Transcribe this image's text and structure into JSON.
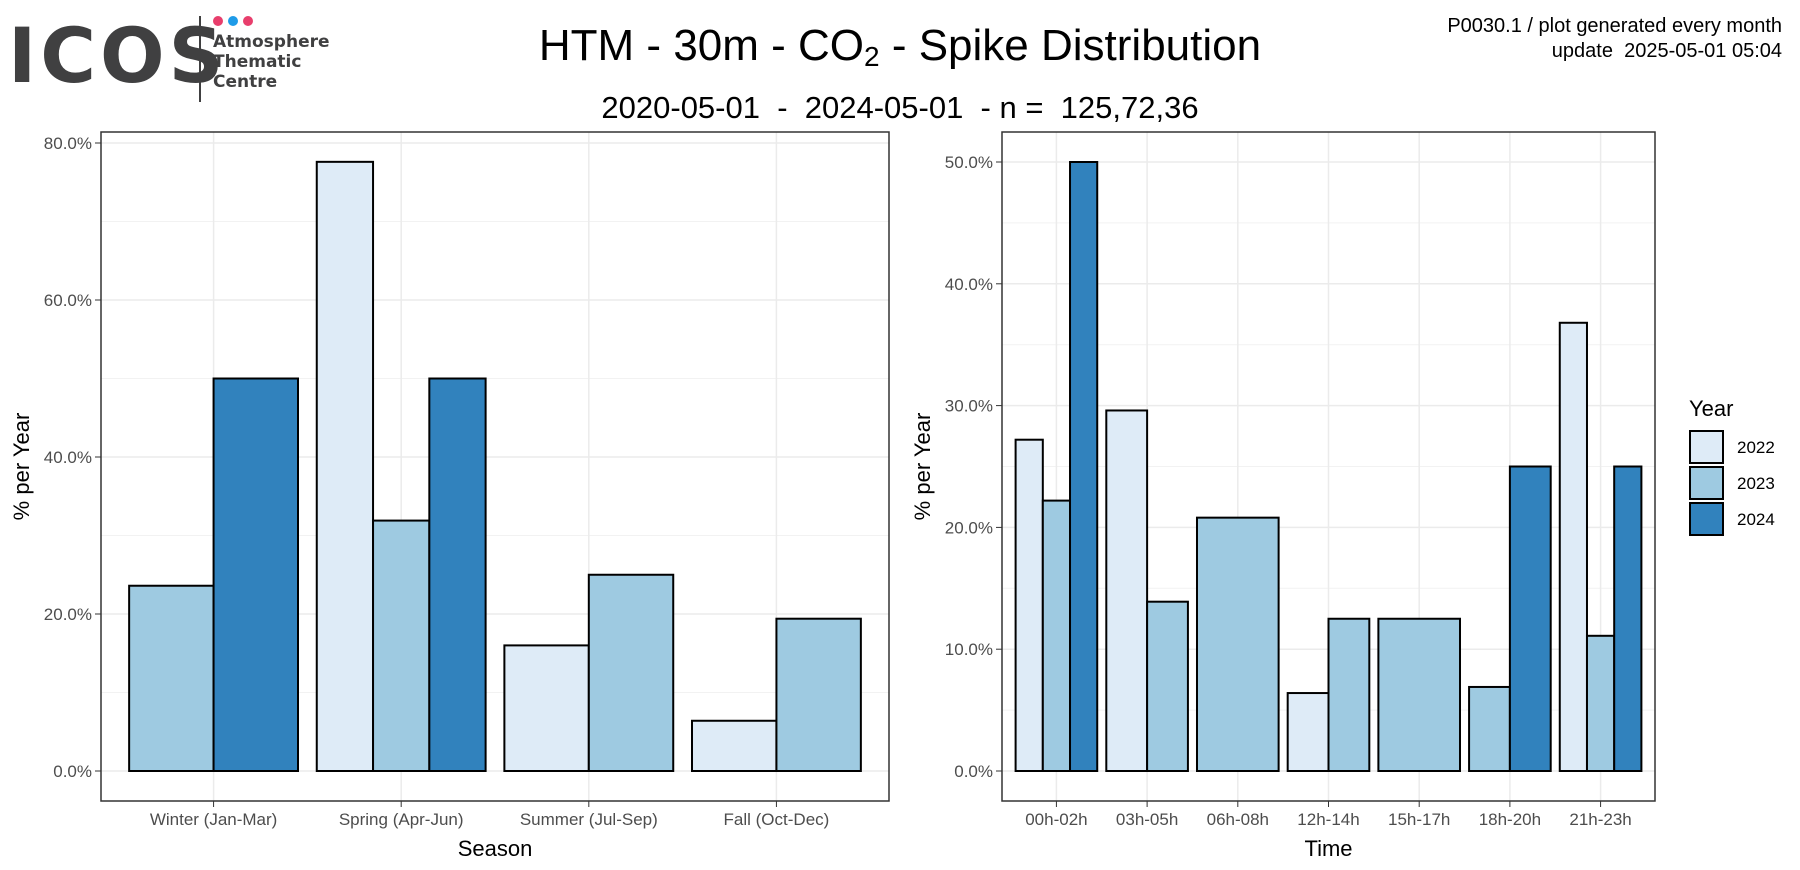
{
  "logo": {
    "word": "ICOS",
    "lines": [
      "Atmosphere",
      "Thematic",
      "Centre"
    ],
    "dot_colors": [
      "#e83e6c",
      "#1e9be8",
      "#e83e6c"
    ]
  },
  "header": {
    "title_pre": "HTM - 30m - CO",
    "title_sub": "2",
    "title_post": " - Spike Distribution",
    "subtitle": "2020-05-01  -  2024-05-01  - n =  125,72,36",
    "meta_line1": "P0030.1 / plot generated every month",
    "meta_line2": "update  2025-05-01 05:04"
  },
  "colors": {
    "2022": "#deebf7",
    "2023": "#9ecae1",
    "2024": "#3182bd"
  },
  "legend": {
    "title": "Year",
    "items": [
      "2022",
      "2023",
      "2024"
    ]
  },
  "chart_data": [
    {
      "type": "bar",
      "xlabel": "Season",
      "ylabel": "% per Year",
      "ylim": [
        0,
        80
      ],
      "yticks": [
        "0.0%",
        "20.0%",
        "40.0%",
        "60.0%",
        "80.0%"
      ],
      "categories": [
        "Winter (Jan-Mar)",
        "Spring (Apr-Jun)",
        "Summer (Jul-Sep)",
        "Fall (Oct-Dec)"
      ],
      "groups": [
        {
          "category": "Winter (Jan-Mar)",
          "bars": [
            {
              "year": "2023",
              "value": 23.6
            },
            {
              "year": "2024",
              "value": 50.0
            }
          ]
        },
        {
          "category": "Spring (Apr-Jun)",
          "bars": [
            {
              "year": "2022",
              "value": 77.6
            },
            {
              "year": "2023",
              "value": 31.9
            },
            {
              "year": "2024",
              "value": 50.0
            }
          ]
        },
        {
          "category": "Summer (Jul-Sep)",
          "bars": [
            {
              "year": "2022",
              "value": 16.0
            },
            {
              "year": "2023",
              "value": 25.0
            }
          ]
        },
        {
          "category": "Fall (Oct-Dec)",
          "bars": [
            {
              "year": "2022",
              "value": 6.4
            },
            {
              "year": "2023",
              "value": 19.4
            }
          ]
        }
      ]
    },
    {
      "type": "bar",
      "xlabel": "Time",
      "ylabel": "% per Year",
      "ylim": [
        0,
        50
      ],
      "yticks": [
        "0.0%",
        "10.0%",
        "20.0%",
        "30.0%",
        "40.0%",
        "50.0%"
      ],
      "categories": [
        "00h-02h",
        "03h-05h",
        "06h-08h",
        "12h-14h",
        "15h-17h",
        "18h-20h",
        "21h-23h"
      ],
      "groups": [
        {
          "category": "00h-02h",
          "bars": [
            {
              "year": "2022",
              "value": 27.2
            },
            {
              "year": "2023",
              "value": 22.2
            },
            {
              "year": "2024",
              "value": 50.0
            }
          ]
        },
        {
          "category": "03h-05h",
          "bars": [
            {
              "year": "2022",
              "value": 29.6
            },
            {
              "year": "2023",
              "value": 13.9
            }
          ]
        },
        {
          "category": "06h-08h",
          "bars": [
            {
              "year": "2023",
              "value": 20.8
            }
          ]
        },
        {
          "category": "12h-14h",
          "bars": [
            {
              "year": "2022",
              "value": 6.4
            },
            {
              "year": "2023",
              "value": 12.5
            }
          ]
        },
        {
          "category": "15h-17h",
          "bars": [
            {
              "year": "2023",
              "value": 12.5
            }
          ]
        },
        {
          "category": "18h-20h",
          "bars": [
            {
              "year": "2023",
              "value": 6.9
            },
            {
              "year": "2024",
              "value": 25.0
            }
          ]
        },
        {
          "category": "21h-23h",
          "bars": [
            {
              "year": "2022",
              "value": 36.8
            },
            {
              "year": "2023",
              "value": 11.1
            },
            {
              "year": "2024",
              "value": 25.0
            }
          ]
        }
      ]
    }
  ]
}
